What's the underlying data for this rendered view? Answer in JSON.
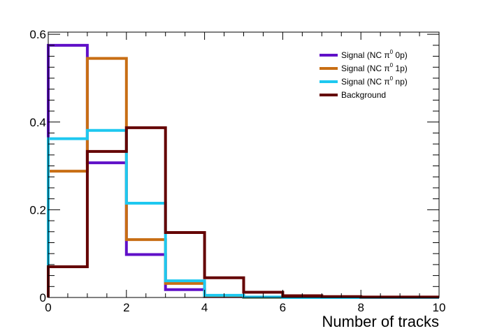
{
  "chart_data": {
    "type": "line",
    "style": "step-histogram",
    "xlabel": "Number of tracks",
    "ylabel": "",
    "xlim": [
      0,
      10
    ],
    "ylim": [
      0,
      0.605
    ],
    "x_ticks": [
      0,
      2,
      4,
      6,
      8,
      10
    ],
    "y_ticks": [
      0,
      0.2,
      0.4,
      0.6
    ],
    "x_tick_labels": [
      "0",
      "2",
      "4",
      "6",
      "8",
      "10"
    ],
    "y_tick_labels": [
      "0",
      "0.2",
      "0.4",
      "0.6"
    ],
    "bin_edges": [
      0,
      1,
      2,
      3,
      4,
      5,
      6,
      7,
      8,
      9,
      10
    ],
    "legend_position": "top-right",
    "grid": false,
    "series": [
      {
        "name": "Signal (NC π0 0p)",
        "label_parts": {
          "prefix": "Signal (NC π",
          "sup": "0",
          "suffix": " 0p)"
        },
        "color": "#6010c8",
        "values": [
          0.575,
          0.307,
          0.098,
          0.018,
          0.002,
          0,
          0,
          0,
          0,
          0
        ]
      },
      {
        "name": "Signal (NC π0 1p)",
        "label_parts": {
          "prefix": "Signal (NC π",
          "sup": "0",
          "suffix": " 1p)"
        },
        "color": "#c86e14",
        "values": [
          0.288,
          0.545,
          0.132,
          0.032,
          0.003,
          0,
          0,
          0,
          0,
          0
        ]
      },
      {
        "name": "Signal (NC π0 np)",
        "label_parts": {
          "prefix": "Signal (NC π",
          "sup": "0",
          "suffix": " np)"
        },
        "color": "#1ec8f0",
        "values": [
          0.362,
          0.381,
          0.215,
          0.038,
          0.005,
          0.001,
          0,
          0,
          0,
          0
        ]
      },
      {
        "name": "Background",
        "label_parts": {
          "prefix": "Background",
          "sup": "",
          "suffix": ""
        },
        "color": "#640000",
        "values": [
          0.07,
          0.333,
          0.387,
          0.148,
          0.045,
          0.012,
          0.004,
          0.002,
          0.001,
          0.001
        ]
      }
    ]
  }
}
